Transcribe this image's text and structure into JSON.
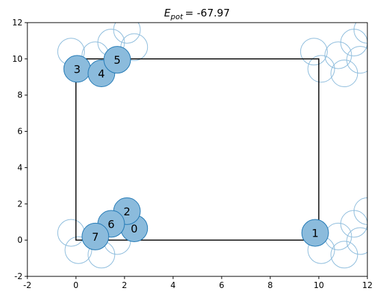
{
  "chart_data": {
    "type": "scatter",
    "title_symbol": "E",
    "title_subscript": "pot",
    "title_value": "= -67.97",
    "xlim": [
      -2,
      12
    ],
    "ylim": [
      -2,
      12
    ],
    "x_ticks": [
      -2,
      0,
      2,
      4,
      6,
      8,
      10,
      12
    ],
    "y_ticks": [
      -2,
      0,
      2,
      4,
      6,
      8,
      10,
      12
    ],
    "cell": {
      "x0": 0,
      "y0": 0,
      "x1": 10,
      "y1": 10
    },
    "atom_radius": 0.55,
    "fill_color": "#8bbbdc",
    "edge_color": "#1f77b4",
    "image_edge_color": "#8bbbdc",
    "atoms": [
      {
        "label": "0",
        "x": 2.4,
        "y": 0.65
      },
      {
        "label": "1",
        "x": 9.85,
        "y": 0.4
      },
      {
        "label": "2",
        "x": 2.1,
        "y": 1.6
      },
      {
        "label": "3",
        "x": 0.05,
        "y": 9.45
      },
      {
        "label": "4",
        "x": 1.05,
        "y": 9.2
      },
      {
        "label": "5",
        "x": 1.7,
        "y": 9.95
      },
      {
        "label": "6",
        "x": 1.45,
        "y": 0.9
      },
      {
        "label": "7",
        "x": 0.8,
        "y": 0.2
      }
    ],
    "image_atoms": [
      {
        "x": -0.2,
        "y": 0.4
      },
      {
        "x": 0.1,
        "y": -0.55
      },
      {
        "x": 1.05,
        "y": -0.8
      },
      {
        "x": 1.7,
        "y": -0.05
      },
      {
        "x": -0.2,
        "y": 10.4
      },
      {
        "x": 0.8,
        "y": 10.2
      },
      {
        "x": 1.45,
        "y": 10.9
      },
      {
        "x": 2.1,
        "y": 11.6
      },
      {
        "x": 2.4,
        "y": 10.65
      },
      {
        "x": 9.8,
        "y": 10.4
      },
      {
        "x": 10.1,
        "y": 9.45
      },
      {
        "x": 10.8,
        "y": 10.2
      },
      {
        "x": 11.05,
        "y": 9.2
      },
      {
        "x": 11.45,
        "y": 10.9
      },
      {
        "x": 11.7,
        "y": 9.95
      },
      {
        "x": 12.0,
        "y": 11.6
      },
      {
        "x": 10.1,
        "y": -0.55
      },
      {
        "x": 10.8,
        "y": 0.2
      },
      {
        "x": 11.05,
        "y": -0.8
      },
      {
        "x": 11.45,
        "y": 0.9
      },
      {
        "x": 11.7,
        "y": -0.05
      },
      {
        "x": 12.0,
        "y": 1.6
      }
    ]
  }
}
